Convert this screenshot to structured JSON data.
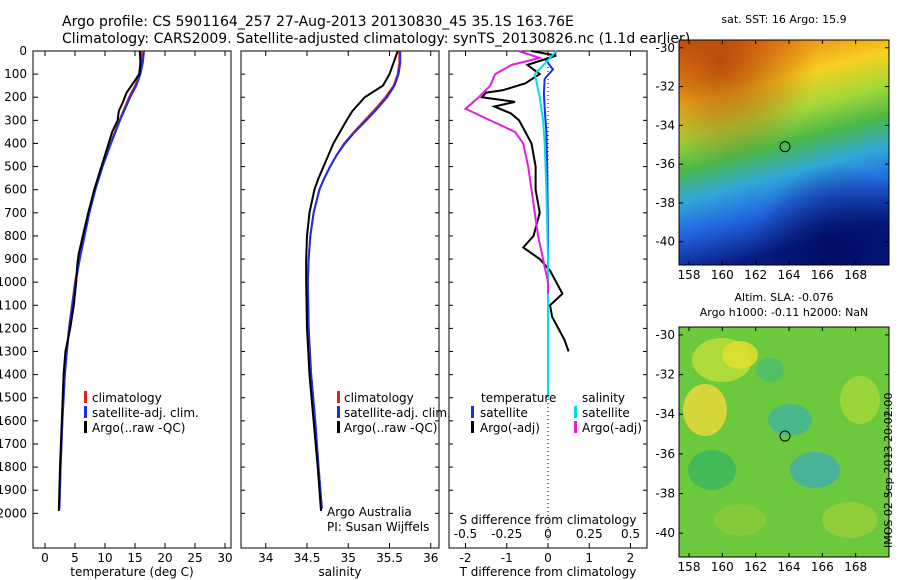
{
  "header": {
    "title_line1": "Argo profile: CS 5901164_257 27-Aug-2013 20130830_45 35.1S 163.76E",
    "title_line2": "Climatology: CARS2009. Satellite-adjusted climatology: synTS_20130826.nc (1.1d earlier)"
  },
  "side_label": "IMOS 02-Sep-2013 20:02:00",
  "credit": {
    "line1": "Argo Australia",
    "line2": "PI: Susan Wijffels"
  },
  "chart_data": [
    {
      "id": "temperature",
      "type": "line",
      "xlabel": "temperature (deg C)",
      "ylabel": "",
      "xlim": [
        -2,
        31
      ],
      "ylim": [
        2150,
        0
      ],
      "xticks": [
        "0",
        "5",
        "10",
        "15",
        "20",
        "25",
        "30"
      ],
      "xtick_values": [
        0,
        5,
        10,
        15,
        20,
        25,
        30
      ],
      "yticks": [
        "0",
        "100",
        "200",
        "300",
        "400",
        "500",
        "600",
        "700",
        "800",
        "900",
        "1000",
        "1100",
        "1200",
        "1300",
        "1400",
        "1500",
        "1600",
        "1700",
        "1800",
        "1900",
        "2000"
      ],
      "ytick_values": [
        0,
        100,
        200,
        300,
        400,
        500,
        600,
        700,
        800,
        900,
        1000,
        1100,
        1200,
        1300,
        1400,
        1500,
        1600,
        1700,
        1800,
        1900,
        2000
      ],
      "legend": [
        "climatology",
        "satellite-adj. clim.",
        "Argo(..raw -QC)"
      ],
      "series": [
        {
          "name": "climatology",
          "color": "#e02020",
          "depth": [
            0,
            50,
            100,
            150,
            200,
            300,
            400,
            500,
            600,
            700,
            800,
            900,
            1000,
            1200,
            1400,
            1600,
            1800,
            1980
          ],
          "values": [
            16.2,
            16.1,
            15.8,
            15.0,
            14.0,
            12.4,
            10.9,
            9.5,
            8.3,
            7.3,
            6.5,
            5.7,
            5.0,
            4.0,
            3.3,
            2.9,
            2.6,
            2.4
          ]
        },
        {
          "name": "satellite-adj. clim.",
          "color": "#1c2ee6",
          "depth": [
            0,
            50,
            100,
            150,
            200,
            300,
            400,
            500,
            600,
            700,
            800,
            900,
            1000,
            1200,
            1400,
            1600,
            1800,
            1980
          ],
          "values": [
            16.5,
            16.3,
            15.9,
            15.2,
            14.2,
            12.5,
            11.0,
            9.6,
            8.4,
            7.4,
            6.6,
            5.8,
            5.1,
            4.0,
            3.3,
            2.9,
            2.6,
            2.4
          ]
        },
        {
          "name": "Argo(..raw -QC)",
          "color": "#000000",
          "depth": [
            0,
            50,
            100,
            150,
            180,
            220,
            260,
            300,
            350,
            400,
            450,
            500,
            600,
            700,
            800,
            880,
            920,
            1000,
            1100,
            1200,
            1300,
            1400,
            1600,
            1800,
            1990
          ],
          "values": [
            15.8,
            15.9,
            15.7,
            14.4,
            13.6,
            13.0,
            12.3,
            12.1,
            11.2,
            10.6,
            10.0,
            9.4,
            8.2,
            7.2,
            6.3,
            5.6,
            5.4,
            5.2,
            4.8,
            4.2,
            3.4,
            3.1,
            2.8,
            2.5,
            2.3
          ]
        }
      ]
    },
    {
      "id": "salinity",
      "type": "line",
      "xlabel": "salinity",
      "ylabel": "",
      "xlim": [
        33.7,
        36.1
      ],
      "ylim": [
        2150,
        0
      ],
      "xticks": [
        "34",
        "34.5",
        "35",
        "35.5",
        "36"
      ],
      "xtick_values": [
        34,
        34.5,
        35,
        35.5,
        36
      ],
      "legend": [
        "climatology",
        "satellite-adj. clim.",
        "Argo(..raw -QC)"
      ],
      "series": [
        {
          "name": "climatology",
          "color": "#e02020",
          "depth": [
            0,
            50,
            100,
            150,
            200,
            250,
            300,
            350,
            400,
            450,
            500,
            550,
            600,
            700,
            800,
            900,
            1000,
            1200,
            1400,
            1600,
            1800,
            1980
          ],
          "values": [
            35.62,
            35.62,
            35.6,
            35.55,
            35.45,
            35.33,
            35.2,
            35.07,
            34.95,
            34.86,
            34.78,
            34.71,
            34.65,
            34.58,
            34.54,
            34.52,
            34.51,
            34.52,
            34.55,
            34.6,
            34.64,
            34.68
          ]
        },
        {
          "name": "satellite-adj. clim.",
          "color": "#1c2ee6",
          "depth": [
            0,
            50,
            100,
            150,
            200,
            250,
            300,
            350,
            400,
            450,
            500,
            550,
            600,
            700,
            800,
            900,
            1000,
            1200,
            1400,
            1600,
            1800,
            1980
          ],
          "values": [
            35.63,
            35.63,
            35.61,
            35.56,
            35.47,
            35.35,
            35.22,
            35.08,
            34.96,
            34.86,
            34.78,
            34.71,
            34.65,
            34.58,
            34.54,
            34.52,
            34.51,
            34.52,
            34.55,
            34.6,
            34.64,
            34.68
          ]
        },
        {
          "name": "Argo(..raw -QC)",
          "color": "#000000",
          "depth": [
            0,
            50,
            100,
            150,
            200,
            220,
            260,
            300,
            350,
            400,
            450,
            500,
            550,
            600,
            700,
            800,
            900,
            1000,
            1200,
            1400,
            1600,
            1800,
            1990
          ],
          "values": [
            35.6,
            35.55,
            35.5,
            35.42,
            35.2,
            35.15,
            35.05,
            34.98,
            34.9,
            34.82,
            34.76,
            34.7,
            34.64,
            34.59,
            34.53,
            34.5,
            34.49,
            34.49,
            34.5,
            34.53,
            34.58,
            34.63,
            34.67
          ]
        }
      ]
    },
    {
      "id": "differences",
      "type": "line",
      "xlabel_top": "S difference from climatology",
      "xlabel": "T difference from climatology",
      "xlim": [
        -2.4,
        2.4
      ],
      "ylim": [
        2150,
        0
      ],
      "xticks_T": [
        "-2",
        "-1",
        "0",
        "1",
        "2"
      ],
      "xtick_values_T": [
        -2,
        -1,
        0,
        1,
        2
      ],
      "xticks_S": [
        "-0.5",
        "-0.25",
        "0",
        "0.25",
        "0.5"
      ],
      "xtick_values_S": [
        -0.5,
        -0.25,
        0,
        0.25,
        0.5
      ],
      "legend_temperature": {
        "title": "temperature",
        "items": [
          "satellite",
          "Argo(-adj)"
        ]
      },
      "legend_salinity": {
        "title": "salinity",
        "items": [
          "satellite",
          "Argo(-adj)"
        ]
      },
      "series": [
        {
          "name": "T satellite",
          "color": "#1c2ee6",
          "depth": [
            0,
            20,
            40,
            80,
            120,
            180,
            250,
            350,
            500,
            800,
            1200,
            1300
          ],
          "values": [
            0.2,
            0.15,
            -0.05,
            0.12,
            -0.08,
            -0.1,
            -0.08,
            -0.04,
            -0.02,
            0.0,
            0.0,
            0.0
          ]
        },
        {
          "name": "T Argo(-adj)",
          "color": "#000000",
          "depth": [
            0,
            20,
            60,
            100,
            140,
            170,
            180,
            200,
            220,
            240,
            270,
            300,
            350,
            400,
            500,
            600,
            700,
            800,
            850,
            900,
            950,
            1000,
            1050,
            1100,
            1150,
            1200,
            1250,
            1300
          ],
          "values": [
            -0.4,
            0.2,
            -0.5,
            -0.2,
            -0.55,
            -1.1,
            -1.5,
            -1.6,
            -0.8,
            -1.3,
            -0.9,
            -0.7,
            -0.55,
            -0.4,
            -0.3,
            -0.3,
            -0.2,
            -0.35,
            -0.6,
            -0.2,
            0.05,
            0.2,
            0.35,
            0.05,
            0.1,
            0.25,
            0.4,
            0.5
          ]
        },
        {
          "name": "S satellite",
          "color": "#00e0e8",
          "depth": [
            0,
            40,
            100,
            200,
            300,
            400,
            600,
            900,
            1300,
            1500
          ],
          "values": [
            0.05,
            0.0,
            -0.08,
            -0.05,
            -0.03,
            -0.02,
            -0.01,
            0.0,
            0.0,
            0.0
          ]
        },
        {
          "name": "S Argo(-adj)",
          "color": "#e020e0",
          "depth": [
            0,
            30,
            60,
            100,
            150,
            200,
            250,
            300,
            350,
            400,
            500,
            600,
            700,
            800,
            900,
            1000,
            1050
          ],
          "values": [
            -0.18,
            -0.05,
            -0.22,
            -0.32,
            -0.35,
            -0.42,
            -0.5,
            -0.35,
            -0.2,
            -0.15,
            -0.12,
            -0.1,
            -0.08,
            -0.06,
            -0.03,
            0.0,
            0.0
          ]
        }
      ]
    },
    {
      "id": "sst_map",
      "type": "heatmap",
      "title": "sat. SST: 16 Argo: 15.9",
      "xticks": [
        "158",
        "160",
        "162",
        "164",
        "166",
        "168"
      ],
      "xtick_values": [
        158,
        160,
        162,
        164,
        166,
        168
      ],
      "yticks": [
        "-30",
        "-32",
        "-34",
        "-36",
        "-38",
        "-40"
      ],
      "ytick_values": [
        -30,
        -32,
        -34,
        -36,
        -38,
        -40
      ],
      "xlim": [
        157.4,
        170.0
      ],
      "ylim": [
        -41.2,
        -29.6
      ],
      "marker": {
        "lon": 163.76,
        "lat": -35.1
      }
    },
    {
      "id": "sla_map",
      "type": "heatmap",
      "title_line1": "Altim. SLA: -0.076",
      "title_line2": "Argo h1000: -0.11 h2000: NaN",
      "xticks": [
        "158",
        "160",
        "162",
        "164",
        "166",
        "168"
      ],
      "xtick_values": [
        158,
        160,
        162,
        164,
        166,
        168
      ],
      "yticks": [
        "-30",
        "-32",
        "-34",
        "-36",
        "-38",
        "-40"
      ],
      "ytick_values": [
        -30,
        -32,
        -34,
        -36,
        -38,
        -40
      ],
      "xlim": [
        157.4,
        170.0
      ],
      "ylim": [
        -41.2,
        -29.6
      ],
      "marker": {
        "lon": 163.76,
        "lat": -35.1
      }
    }
  ]
}
